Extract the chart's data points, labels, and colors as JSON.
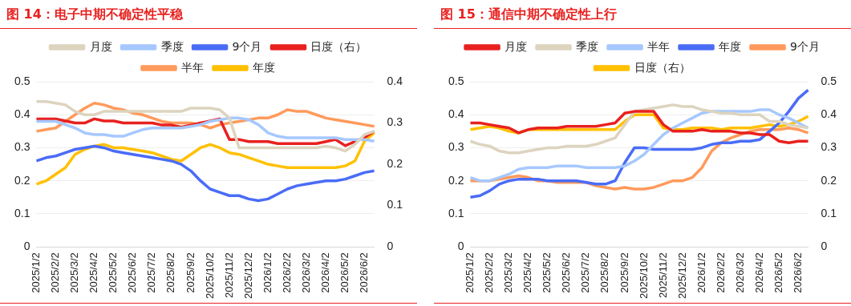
{
  "chart_data": [
    {
      "type": "line",
      "title": "图 14：电子中期不确定性平稳",
      "categories": [
        "2025/1/2",
        null,
        "2025/2/2",
        null,
        "2025/3/2",
        null,
        "2025/4/2",
        null,
        "2025/5/2",
        null,
        "2025/6/2",
        null,
        "2025/7/2",
        null,
        "2025/8/2",
        null,
        "2025/9/2",
        null,
        "2025/10/2",
        null,
        "2025/11/2",
        null,
        "2025/12/2",
        null,
        "2026/1/2",
        null,
        "2026/2/2",
        null,
        "2026/3/2",
        null,
        "2026/4/2",
        null,
        "2026/5/2",
        null,
        "2026/6/2",
        null
      ],
      "series": [
        {
          "name": "月度",
          "color": "#ddd4bf",
          "values": [
            0.44,
            0.44,
            0.435,
            0.43,
            0.41,
            0.4,
            0.4,
            0.41,
            0.41,
            0.41,
            0.41,
            0.41,
            0.41,
            0.41,
            0.41,
            0.41,
            0.42,
            0.42,
            0.42,
            0.415,
            0.39,
            0.3,
            0.3,
            0.3,
            0.3,
            0.3,
            0.3,
            0.3,
            0.3,
            0.3,
            0.305,
            0.3,
            0.29,
            0.31,
            0.34,
            0.35
          ]
        },
        {
          "name": "季度",
          "color": "#a6c8ff",
          "values": [
            0.38,
            0.38,
            0.38,
            0.37,
            0.36,
            0.345,
            0.34,
            0.34,
            0.335,
            0.335,
            0.345,
            0.355,
            0.36,
            0.36,
            0.36,
            0.36,
            0.365,
            0.37,
            0.38,
            0.385,
            0.39,
            0.39,
            0.385,
            0.37,
            0.345,
            0.335,
            0.33,
            0.33,
            0.33,
            0.33,
            0.33,
            0.33,
            0.325,
            0.325,
            0.325,
            0.32
          ]
        },
        {
          "name": "9个月",
          "color": "#4a6cf7",
          "values": [
            0.26,
            0.27,
            0.275,
            0.285,
            0.295,
            0.3,
            0.305,
            0.3,
            0.29,
            0.285,
            0.28,
            0.275,
            0.27,
            0.265,
            0.26,
            0.25,
            0.23,
            0.2,
            0.175,
            0.165,
            0.155,
            0.155,
            0.145,
            0.14,
            0.145,
            0.16,
            0.175,
            0.185,
            0.19,
            0.195,
            0.2,
            0.2,
            0.205,
            0.215,
            0.225,
            0.23
          ]
        },
        {
          "name": "日度（右）",
          "color": "#e8211f",
          "axis": "y2",
          "values": [
            0.31,
            0.31,
            0.31,
            0.305,
            0.3,
            0.3,
            0.31,
            0.305,
            0.305,
            0.3,
            0.3,
            0.3,
            0.3,
            0.295,
            0.295,
            0.29,
            0.295,
            0.3,
            0.305,
            0.31,
            0.26,
            0.26,
            0.255,
            0.255,
            0.255,
            0.25,
            0.25,
            0.25,
            0.25,
            0.25,
            0.255,
            0.26,
            0.245,
            0.255,
            0.265,
            0.28
          ]
        },
        {
          "name": "半年",
          "color": "#ff9a5c",
          "values": [
            0.35,
            0.355,
            0.36,
            0.38,
            0.4,
            0.42,
            0.435,
            0.43,
            0.42,
            0.415,
            0.405,
            0.4,
            0.39,
            0.38,
            0.375,
            0.375,
            0.375,
            0.37,
            0.36,
            0.37,
            0.375,
            0.38,
            0.385,
            0.39,
            0.39,
            0.4,
            0.415,
            0.41,
            0.41,
            0.4,
            0.39,
            0.385,
            0.38,
            0.375,
            0.37,
            0.365
          ]
        },
        {
          "name": "年度",
          "color": "#ffc000",
          "values": [
            0.19,
            0.2,
            0.22,
            0.24,
            0.28,
            0.295,
            0.305,
            0.31,
            0.3,
            0.3,
            0.295,
            0.29,
            0.285,
            0.275,
            0.265,
            0.26,
            0.28,
            0.3,
            0.31,
            0.3,
            0.285,
            0.28,
            0.27,
            0.26,
            0.25,
            0.245,
            0.24,
            0.24,
            0.24,
            0.24,
            0.24,
            0.24,
            0.245,
            0.26,
            0.32,
            0.345
          ]
        }
      ],
      "ylim": [
        0,
        0.5
      ],
      "yticks": [
        0,
        0.1,
        0.2,
        0.3,
        0.4,
        0.5
      ],
      "y2lim": [
        0,
        0.4
      ],
      "y2ticks": [
        0,
        0.1,
        0.2,
        0.3,
        0.4
      ],
      "grid": "y",
      "legend": "top",
      "marker": "none",
      "line_style": "solid"
    },
    {
      "type": "line",
      "title": "图 15：通信中期不确定性上行",
      "categories": [
        "2025/1/2",
        null,
        "2025/2/2",
        null,
        "2025/3/2",
        null,
        "2025/4/2",
        null,
        "2025/5/2",
        null,
        "2025/6/2",
        null,
        "2025/7/2",
        null,
        "2025/8/2",
        null,
        "2025/9/2",
        null,
        "2025/10/2",
        null,
        "2025/11/2",
        null,
        "2025/12/2",
        null,
        "2026/1/2",
        null,
        "2026/2/2",
        null,
        "2026/3/2",
        null,
        "2026/4/2",
        null,
        "2026/5/2",
        null,
        "2026/6/2",
        null
      ],
      "series": [
        {
          "name": "月度",
          "color": "#e8211f",
          "values": [
            0.375,
            0.375,
            0.37,
            0.365,
            0.36,
            0.345,
            0.355,
            0.36,
            0.36,
            0.36,
            0.365,
            0.365,
            0.365,
            0.365,
            0.37,
            0.375,
            0.405,
            0.41,
            0.41,
            0.41,
            0.37,
            0.35,
            0.35,
            0.35,
            0.355,
            0.35,
            0.35,
            0.35,
            0.345,
            0.345,
            0.34,
            0.34,
            0.32,
            0.315,
            0.32,
            0.32
          ]
        },
        {
          "name": "季度",
          "color": "#ddd4bf",
          "values": [
            0.32,
            0.31,
            0.305,
            0.29,
            0.285,
            0.285,
            0.29,
            0.295,
            0.3,
            0.3,
            0.305,
            0.305,
            0.305,
            0.31,
            0.32,
            0.33,
            0.37,
            0.41,
            0.415,
            0.42,
            0.425,
            0.43,
            0.425,
            0.425,
            0.415,
            0.41,
            0.405,
            0.405,
            0.4,
            0.4,
            0.4,
            0.38,
            0.38,
            0.37,
            0.365,
            0.36
          ]
        },
        {
          "name": "半年",
          "color": "#a6c8ff",
          "values": [
            0.21,
            0.2,
            0.2,
            0.21,
            0.22,
            0.235,
            0.24,
            0.24,
            0.24,
            0.245,
            0.245,
            0.245,
            0.24,
            0.24,
            0.24,
            0.24,
            0.245,
            0.26,
            0.28,
            0.31,
            0.34,
            0.36,
            0.375,
            0.39,
            0.405,
            0.41,
            0.41,
            0.41,
            0.41,
            0.41,
            0.415,
            0.415,
            0.4,
            0.39,
            0.375,
            0.36
          ]
        },
        {
          "name": "年度",
          "color": "#4a6cf7",
          "values": [
            0.15,
            0.155,
            0.17,
            0.19,
            0.2,
            0.205,
            0.205,
            0.205,
            0.2,
            0.2,
            0.2,
            0.2,
            0.195,
            0.19,
            0.19,
            0.2,
            0.255,
            0.3,
            0.3,
            0.295,
            0.295,
            0.295,
            0.295,
            0.295,
            0.3,
            0.31,
            0.315,
            0.315,
            0.32,
            0.32,
            0.325,
            0.35,
            0.375,
            0.41,
            0.45,
            0.475
          ]
        },
        {
          "name": "9个月",
          "color": "#ff9a5c",
          "values": [
            0.2,
            0.2,
            0.2,
            0.205,
            0.21,
            0.215,
            0.21,
            0.2,
            0.2,
            0.195,
            0.195,
            0.195,
            0.195,
            0.185,
            0.18,
            0.175,
            0.18,
            0.175,
            0.175,
            0.18,
            0.19,
            0.2,
            0.2,
            0.21,
            0.24,
            0.29,
            0.315,
            0.33,
            0.34,
            0.35,
            0.355,
            0.355,
            0.355,
            0.36,
            0.355,
            0.345
          ]
        },
        {
          "name": "日度（右）",
          "color": "#ffc000",
          "axis": "y2",
          "values": [
            0.355,
            0.36,
            0.365,
            0.36,
            0.35,
            0.345,
            0.355,
            0.355,
            0.355,
            0.355,
            0.355,
            0.355,
            0.355,
            0.355,
            0.355,
            0.355,
            0.38,
            0.4,
            0.4,
            0.4,
            0.36,
            0.355,
            0.355,
            0.36,
            0.36,
            0.36,
            0.355,
            0.36,
            0.36,
            0.36,
            0.365,
            0.37,
            0.365,
            0.37,
            0.38,
            0.395
          ]
        }
      ],
      "ylim": [
        0,
        0.5
      ],
      "yticks": [
        0,
        0.1,
        0.2,
        0.3,
        0.4,
        0.5
      ],
      "y2lim": [
        0,
        0.5
      ],
      "y2ticks": [
        0,
        0.1,
        0.2,
        0.3,
        0.4,
        0.5
      ],
      "grid": "y",
      "legend": "top",
      "marker": "none",
      "line_style": "solid"
    }
  ]
}
